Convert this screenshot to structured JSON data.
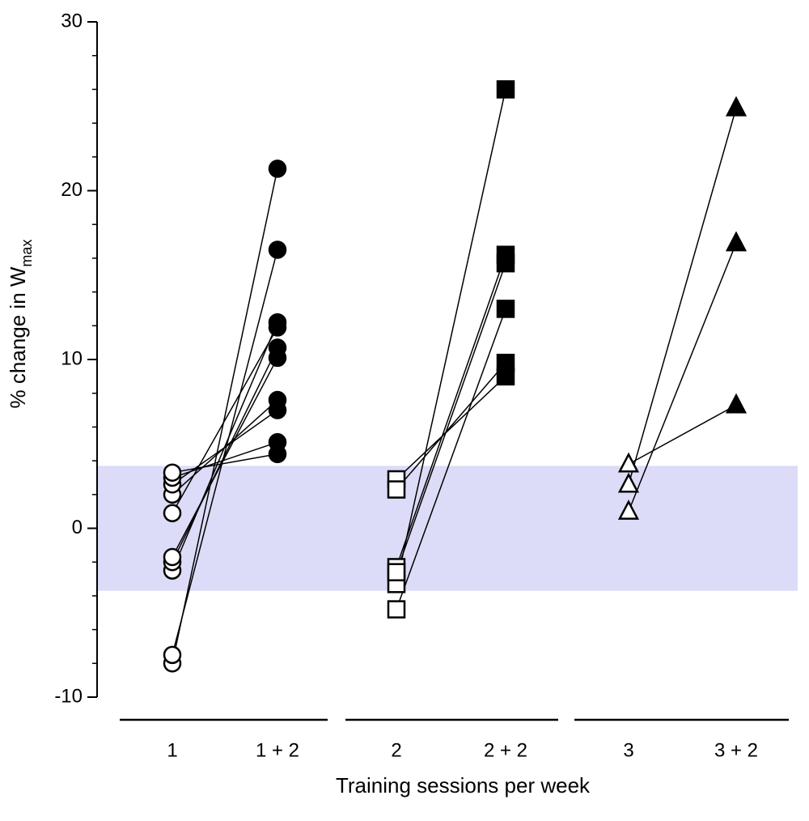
{
  "chart_data": {
    "type": "paired-dot",
    "y_label": "% change in W",
    "y_label_sub": "max",
    "x_label": "Training sessions per week",
    "ylim": [
      -10,
      30
    ],
    "yticks": [
      -10,
      0,
      10,
      20,
      30
    ],
    "yticks_minor": [
      -8,
      -6,
      -4,
      -2,
      2,
      4,
      6,
      8,
      12,
      14,
      16,
      18,
      22,
      24,
      26,
      28
    ],
    "band": [
      -3.7,
      3.7
    ],
    "band_color": "#dcdcf8",
    "groups": [
      {
        "categories": [
          "1",
          "1 + 2"
        ],
        "marker": "circle",
        "before": [
          -8.0,
          -7.5,
          -2.5,
          -2.0,
          -1.7,
          0.9,
          2.0,
          2.6,
          3.0,
          3.3
        ],
        "after": [
          21.3,
          16.5,
          12.2,
          10.7,
          10.1,
          11.9,
          7.6,
          7.0,
          5.1,
          4.4
        ]
      },
      {
        "categories": [
          "2",
          "2 + 2"
        ],
        "marker": "square",
        "before": [
          -3.3,
          -2.3,
          -2.6,
          -4.8,
          2.9,
          2.3
        ],
        "after": [
          26.0,
          16.2,
          15.7,
          13.0,
          9.0,
          9.8
        ]
      },
      {
        "categories": [
          "3",
          "3 + 2"
        ],
        "marker": "triangle",
        "before": [
          3.8,
          2.6,
          1.0
        ],
        "after": [
          7.3,
          24.9,
          16.9
        ]
      }
    ]
  }
}
